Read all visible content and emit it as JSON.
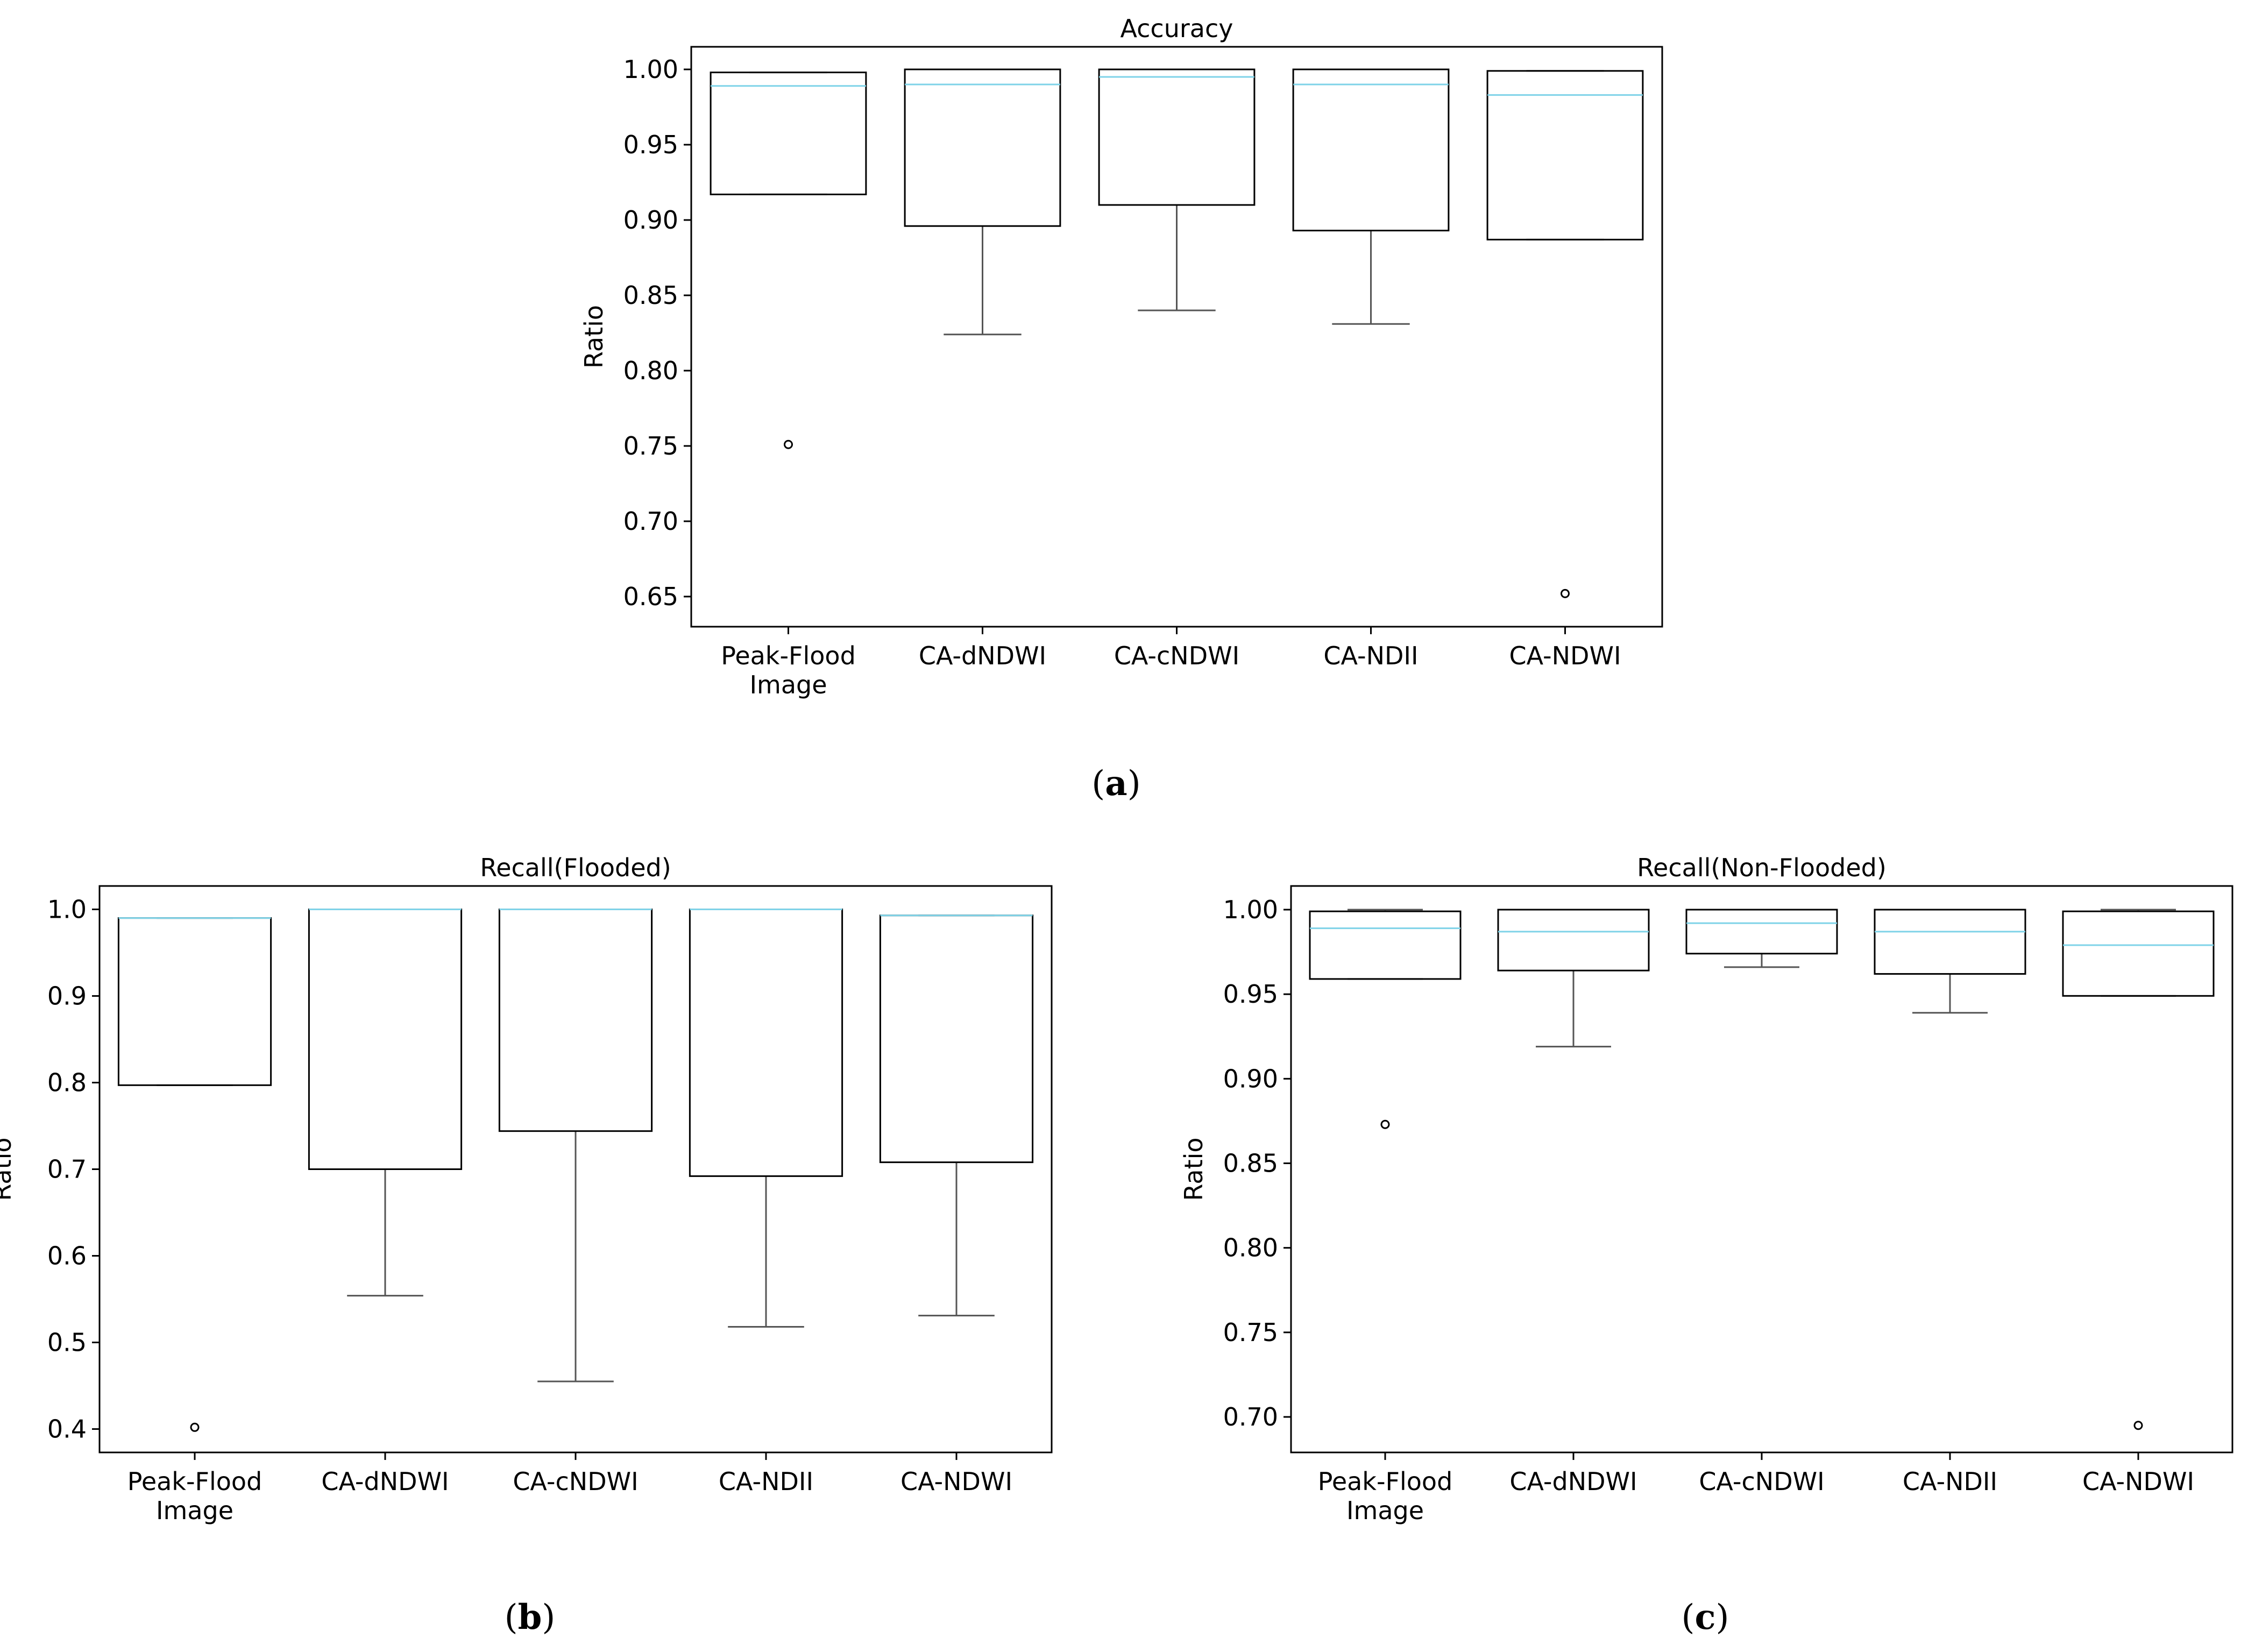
{
  "chart_data": [
    {
      "type": "box",
      "title": "Accuracy",
      "ylabel": "Ratio",
      "caption": "a",
      "categories": [
        "Peak-Flood\nImage",
        "CA-dNDWI",
        "CA-cNDWI",
        "CA-NDII",
        "CA-NDWI"
      ],
      "ylim": [
        0.63,
        1.015
      ],
      "yticks": [
        0.65,
        0.7,
        0.75,
        0.8,
        0.85,
        0.9,
        0.95,
        1.0
      ],
      "ytick_decimals": 2,
      "boxes": [
        {
          "whisker_low": 0.917,
          "q1": 0.917,
          "median": 0.989,
          "q3": 0.998,
          "whisker_high": 0.998,
          "outliers": [
            0.751
          ]
        },
        {
          "whisker_low": 0.824,
          "q1": 0.896,
          "median": 0.99,
          "q3": 1.0,
          "whisker_high": 1.0,
          "outliers": []
        },
        {
          "whisker_low": 0.84,
          "q1": 0.91,
          "median": 0.995,
          "q3": 1.0,
          "whisker_high": 1.0,
          "outliers": []
        },
        {
          "whisker_low": 0.831,
          "q1": 0.893,
          "median": 0.99,
          "q3": 1.0,
          "whisker_high": 1.0,
          "outliers": []
        },
        {
          "whisker_low": 0.887,
          "q1": 0.887,
          "median": 0.983,
          "q3": 0.999,
          "whisker_high": 0.999,
          "outliers": [
            0.652
          ]
        }
      ],
      "colors": {
        "median": "#7fd3e8",
        "box": "#000000",
        "whisker": "#555555"
      }
    },
    {
      "type": "box",
      "title": "Recall(Flooded)",
      "ylabel": "Ratio",
      "caption": "b",
      "categories": [
        "Peak-Flood\nImage",
        "CA-dNDWI",
        "CA-cNDWI",
        "CA-NDII",
        "CA-NDWI"
      ],
      "ylim": [
        0.373,
        1.027
      ],
      "yticks": [
        0.4,
        0.5,
        0.6,
        0.7,
        0.8,
        0.9,
        1.0
      ],
      "ytick_decimals": 1,
      "boxes": [
        {
          "whisker_low": 0.797,
          "q1": 0.797,
          "median": 0.99,
          "q3": 0.99,
          "whisker_high": 0.99,
          "outliers": [
            0.402
          ]
        },
        {
          "whisker_low": 0.554,
          "q1": 0.7,
          "median": 1.0,
          "q3": 1.0,
          "whisker_high": 1.0,
          "outliers": []
        },
        {
          "whisker_low": 0.455,
          "q1": 0.744,
          "median": 1.0,
          "q3": 1.0,
          "whisker_high": 1.0,
          "outliers": []
        },
        {
          "whisker_low": 0.518,
          "q1": 0.692,
          "median": 1.0,
          "q3": 1.0,
          "whisker_high": 1.0,
          "outliers": []
        },
        {
          "whisker_low": 0.531,
          "q1": 0.708,
          "median": 0.993,
          "q3": 0.993,
          "whisker_high": 0.993,
          "outliers": []
        }
      ],
      "colors": {
        "median": "#7fd3e8",
        "box": "#000000",
        "whisker": "#555555"
      }
    },
    {
      "type": "box",
      "title": "Recall(Non-Flooded)",
      "ylabel": "Ratio",
      "caption": "c",
      "categories": [
        "Peak-Flood\nImage",
        "CA-dNDWI",
        "CA-cNDWI",
        "CA-NDII",
        "CA-NDWI"
      ],
      "ylim": [
        0.679,
        1.014
      ],
      "yticks": [
        0.7,
        0.75,
        0.8,
        0.85,
        0.9,
        0.95,
        1.0
      ],
      "ytick_decimals": 2,
      "boxes": [
        {
          "whisker_low": 0.959,
          "q1": 0.959,
          "median": 0.989,
          "q3": 0.999,
          "whisker_high": 1.0,
          "outliers": [
            0.873
          ]
        },
        {
          "whisker_low": 0.919,
          "q1": 0.964,
          "median": 0.987,
          "q3": 1.0,
          "whisker_high": 1.0,
          "outliers": []
        },
        {
          "whisker_low": 0.966,
          "q1": 0.974,
          "median": 0.992,
          "q3": 1.0,
          "whisker_high": 1.0,
          "outliers": []
        },
        {
          "whisker_low": 0.939,
          "q1": 0.962,
          "median": 0.987,
          "q3": 1.0,
          "whisker_high": 1.0,
          "outliers": []
        },
        {
          "whisker_low": 0.949,
          "q1": 0.949,
          "median": 0.979,
          "q3": 0.999,
          "whisker_high": 1.0,
          "outliers": [
            0.695
          ]
        }
      ],
      "colors": {
        "median": "#7fd3e8",
        "box": "#000000",
        "whisker": "#555555"
      }
    }
  ]
}
